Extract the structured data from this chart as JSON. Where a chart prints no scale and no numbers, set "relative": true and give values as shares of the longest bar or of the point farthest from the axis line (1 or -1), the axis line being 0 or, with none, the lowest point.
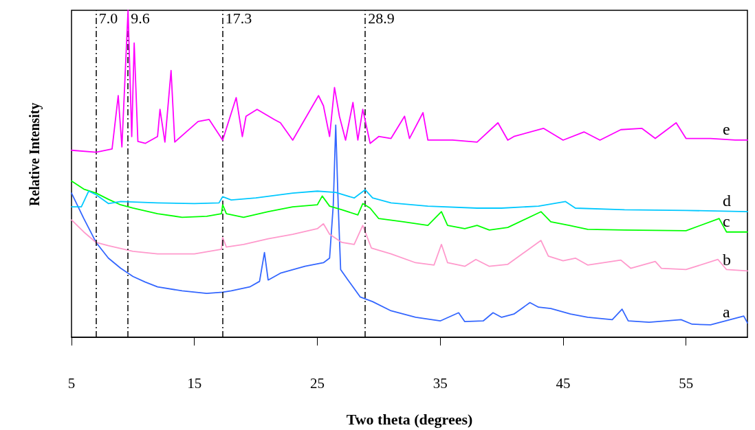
{
  "chart_data": {
    "type": "line",
    "relative": true,
    "xlabel": "Two theta (degrees)",
    "ylabel": "Relative Intensity",
    "xlim": [
      5,
      60
    ],
    "xticks": [
      5,
      15,
      25,
      35,
      45,
      55
    ],
    "grid": false,
    "legend": false,
    "marker": "none",
    "line_style": "solid",
    "ref_lines": [
      {
        "axis": "x",
        "value": 7.0,
        "label": "7.0",
        "color": "#000000",
        "line_style": "dashed"
      },
      {
        "axis": "x",
        "value": 9.6,
        "label": "9.6",
        "color": "#000000",
        "line_style": "dashed"
      },
      {
        "axis": "x",
        "value": 17.3,
        "label": "17.3",
        "color": "#000000",
        "line_style": "dashed"
      },
      {
        "axis": "x",
        "value": 28.9,
        "label": "28.9",
        "color": "#000000",
        "line_style": "dashed"
      }
    ],
    "series": [
      {
        "name": "a",
        "color": "#3366ff",
        "x": [
          5,
          6,
          7,
          8,
          9,
          10,
          11,
          12,
          14,
          16,
          17.3,
          18,
          19.5,
          20.3,
          20.7,
          21,
          22,
          24,
          25.5,
          26,
          26.3,
          26.5,
          26.7,
          26.9,
          27.5,
          28.5,
          29.5,
          31,
          33,
          35,
          36.5,
          37,
          38.5,
          39.3,
          40,
          41,
          42.3,
          43,
          44,
          45.6,
          47,
          49,
          49.8,
          50.3,
          52,
          54.6,
          55.5,
          57,
          59.7,
          60
        ],
        "values": [
          0.441,
          0.363,
          0.29,
          0.242,
          0.211,
          0.186,
          0.169,
          0.154,
          0.142,
          0.134,
          0.138,
          0.142,
          0.154,
          0.171,
          0.259,
          0.175,
          0.196,
          0.217,
          0.228,
          0.242,
          0.405,
          0.649,
          0.405,
          0.207,
          0.175,
          0.123,
          0.109,
          0.081,
          0.061,
          0.05,
          0.075,
          0.048,
          0.05,
          0.075,
          0.061,
          0.071,
          0.106,
          0.092,
          0.088,
          0.071,
          0.061,
          0.054,
          0.086,
          0.05,
          0.046,
          0.054,
          0.04,
          0.038,
          0.065,
          0.044
        ]
      },
      {
        "name": "b",
        "color": "#ff99cc",
        "x": [
          5,
          6,
          7,
          8,
          10,
          12,
          15,
          17.2,
          17.3,
          17.6,
          19,
          21,
          23,
          25,
          25.5,
          26,
          27,
          28,
          28.7,
          29.4,
          31,
          33,
          34.5,
          35.1,
          35.6,
          37,
          37.9,
          39,
          40.5,
          43.2,
          43.8,
          45,
          46,
          47,
          49.7,
          50.5,
          52.5,
          53,
          55,
          57.6,
          58.3,
          60
        ],
        "values": [
          0.359,
          0.322,
          0.29,
          0.28,
          0.263,
          0.255,
          0.255,
          0.269,
          0.305,
          0.276,
          0.284,
          0.301,
          0.315,
          0.332,
          0.347,
          0.315,
          0.29,
          0.284,
          0.342,
          0.273,
          0.255,
          0.228,
          0.221,
          0.284,
          0.228,
          0.217,
          0.238,
          0.217,
          0.223,
          0.296,
          0.248,
          0.234,
          0.242,
          0.221,
          0.236,
          0.211,
          0.232,
          0.211,
          0.207,
          0.238,
          0.207,
          0.203
        ]
      },
      {
        "name": "c",
        "color": "#00ff00",
        "x": [
          5,
          6,
          7,
          8,
          9,
          10,
          12,
          14,
          16,
          17.2,
          17.3,
          17.6,
          19,
          21,
          23,
          25,
          25.4,
          26,
          27,
          28.3,
          28.7,
          29.3,
          30,
          32,
          34,
          35.1,
          35.6,
          37,
          38,
          39,
          40.5,
          43.2,
          44,
          45.5,
          47,
          50,
          55,
          57.7,
          58.3,
          60
        ],
        "values": [
          0.478,
          0.453,
          0.441,
          0.422,
          0.405,
          0.395,
          0.378,
          0.367,
          0.37,
          0.378,
          0.405,
          0.378,
          0.367,
          0.384,
          0.399,
          0.405,
          0.432,
          0.401,
          0.39,
          0.374,
          0.409,
          0.395,
          0.363,
          0.353,
          0.342,
          0.384,
          0.342,
          0.332,
          0.342,
          0.328,
          0.336,
          0.384,
          0.353,
          0.342,
          0.33,
          0.328,
          0.326,
          0.363,
          0.322,
          0.322
        ]
      },
      {
        "name": "d",
        "color": "#00c8ff",
        "x": [
          5,
          5.8,
          6.4,
          7,
          8,
          9,
          12,
          15,
          17,
          17.3,
          18,
          20,
          23,
          25,
          26.5,
          28,
          28.9,
          29.5,
          31,
          34,
          38,
          40,
          43,
          45.2,
          46,
          50,
          55,
          60
        ],
        "values": [
          0.399,
          0.399,
          0.447,
          0.436,
          0.409,
          0.415,
          0.411,
          0.409,
          0.411,
          0.43,
          0.42,
          0.426,
          0.441,
          0.447,
          0.443,
          0.426,
          0.451,
          0.426,
          0.411,
          0.401,
          0.395,
          0.395,
          0.401,
          0.415,
          0.395,
          0.39,
          0.388,
          0.384
        ]
      },
      {
        "name": "e",
        "color": "#ff00ff",
        "x": [
          5,
          7,
          8.3,
          8.8,
          9.1,
          9.6,
          9.9,
          10.1,
          10.4,
          11,
          12,
          12.2,
          12.6,
          13.1,
          13.4,
          15.3,
          16.2,
          17.3,
          18.4,
          18.9,
          19.2,
          20.1,
          21.5,
          22,
          23,
          25.1,
          25.5,
          26,
          26.4,
          26.8,
          27.3,
          27.9,
          28.3,
          28.7,
          29.3,
          30,
          31,
          32.1,
          32.5,
          33.6,
          34,
          36,
          38,
          39.7,
          40.5,
          41,
          43.4,
          45,
          46.7,
          48,
          49.7,
          51.4,
          52.5,
          54.2,
          55,
          57,
          59,
          60
        ],
        "values": [
          0.572,
          0.566,
          0.576,
          0.739,
          0.582,
          1.0,
          0.614,
          0.9,
          0.599,
          0.593,
          0.614,
          0.697,
          0.597,
          0.816,
          0.597,
          0.66,
          0.666,
          0.603,
          0.733,
          0.614,
          0.676,
          0.697,
          0.666,
          0.656,
          0.603,
          0.739,
          0.708,
          0.614,
          0.764,
          0.676,
          0.603,
          0.718,
          0.603,
          0.697,
          0.593,
          0.614,
          0.608,
          0.676,
          0.608,
          0.687,
          0.603,
          0.603,
          0.597,
          0.656,
          0.603,
          0.614,
          0.639,
          0.603,
          0.628,
          0.603,
          0.635,
          0.639,
          0.608,
          0.656,
          0.608,
          0.608,
          0.603,
          0.603
        ]
      }
    ]
  }
}
